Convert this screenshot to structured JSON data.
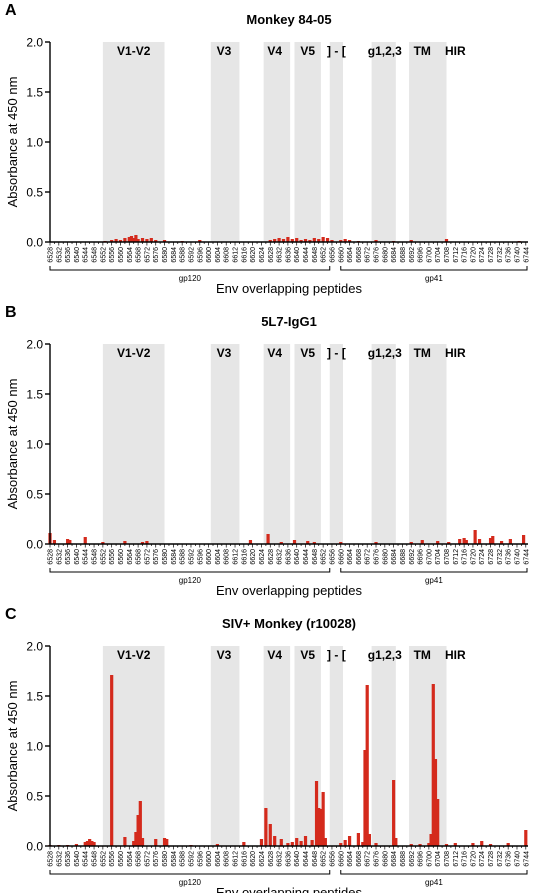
{
  "colors": {
    "bar": "#d42a1c",
    "region": "#e6e6e6",
    "axis": "#000000"
  },
  "chart_data": [
    {
      "panel_letter": "A",
      "type": "bar",
      "title": "Monkey 84-05",
      "ylabel": "Absorbance at 450 nm",
      "xlabel": "Env overlapping peptides",
      "ylim": [
        0,
        2.0
      ],
      "yticks": [
        "0.0",
        "0.5",
        "1.0",
        "1.5",
        "2.0"
      ],
      "x_tick_labels": [
        "6528",
        "6532",
        "6536",
        "6540",
        "6544",
        "6548",
        "6552",
        "6556",
        "6560",
        "6564",
        "6568",
        "6572",
        "6576",
        "6580",
        "6584",
        "6588",
        "6592",
        "6596",
        "6600",
        "6604",
        "6608",
        "6612",
        "6616",
        "6620",
        "6624",
        "6628",
        "6632",
        "6636",
        "6640",
        "6644",
        "6648",
        "6652",
        "6656",
        "6660",
        "6664",
        "6668",
        "6672",
        "6676",
        "6680",
        "6684",
        "6688",
        "6692",
        "6696",
        "6700",
        "6704",
        "6708",
        "6712",
        "6716",
        "6720",
        "6724",
        "6728",
        "6732",
        "6736",
        "6740",
        "6744"
      ],
      "region_labels": [
        "V1-V2",
        "V3",
        "V4",
        "V5",
        "] - [",
        "g1,2,3",
        "TM",
        "HIR"
      ],
      "segment_labels": [
        "gp120",
        "gp41"
      ],
      "values": [
        [
          6553,
          0.01
        ],
        [
          6556,
          0.02
        ],
        [
          6558,
          0.03
        ],
        [
          6560,
          0.02
        ],
        [
          6562,
          0.04
        ],
        [
          6564,
          0.05
        ],
        [
          6565,
          0.06
        ],
        [
          6566,
          0.04
        ],
        [
          6567,
          0.07
        ],
        [
          6568,
          0.03
        ],
        [
          6570,
          0.04
        ],
        [
          6572,
          0.03
        ],
        [
          6574,
          0.04
        ],
        [
          6576,
          0.02
        ],
        [
          6580,
          0.02
        ],
        [
          6588,
          0.01
        ],
        [
          6596,
          0.02
        ],
        [
          6628,
          0.02
        ],
        [
          6630,
          0.03
        ],
        [
          6632,
          0.04
        ],
        [
          6634,
          0.03
        ],
        [
          6636,
          0.05
        ],
        [
          6638,
          0.03
        ],
        [
          6640,
          0.04
        ],
        [
          6642,
          0.02
        ],
        [
          6644,
          0.03
        ],
        [
          6646,
          0.02
        ],
        [
          6648,
          0.04
        ],
        [
          6650,
          0.03
        ],
        [
          6652,
          0.05
        ],
        [
          6654,
          0.04
        ],
        [
          6656,
          0.02
        ],
        [
          6660,
          0.02
        ],
        [
          6662,
          0.03
        ],
        [
          6664,
          0.02
        ],
        [
          6668,
          0.01
        ],
        [
          6676,
          0.02
        ],
        [
          6684,
          0.01
        ],
        [
          6692,
          0.02
        ],
        [
          6708,
          0.03
        ],
        [
          6741,
          0.01
        ]
      ]
    },
    {
      "panel_letter": "B",
      "type": "bar",
      "title": "5L7-IgG1",
      "ylabel": "Absorbance at 450 nm",
      "xlabel": "Env overlapping peptides",
      "ylim": [
        0,
        2.0
      ],
      "yticks": [
        "0.0",
        "0.5",
        "1.0",
        "1.5",
        "2.0"
      ],
      "x_tick_labels": [
        "6528",
        "6532",
        "6536",
        "6540",
        "6544",
        "6548",
        "6552",
        "6556",
        "6560",
        "6564",
        "6568",
        "6572",
        "6576",
        "6580",
        "6584",
        "6588",
        "6592",
        "6596",
        "6600",
        "6604",
        "6608",
        "6612",
        "6616",
        "6620",
        "6624",
        "6628",
        "6632",
        "6636",
        "6640",
        "6644",
        "6648",
        "6652",
        "6656",
        "6660",
        "6664",
        "6668",
        "6672",
        "6676",
        "6680",
        "6684",
        "6688",
        "6692",
        "6696",
        "6700",
        "6704",
        "6708",
        "6712",
        "6716",
        "6720",
        "6724",
        "6728",
        "6732",
        "6736",
        "6740",
        "6744"
      ],
      "region_labels": [
        "V1-V2",
        "V3",
        "V4",
        "V5",
        "] - [",
        "g1,2,3",
        "TM",
        "HIR"
      ],
      "segment_labels": [
        "gp120",
        "gp41"
      ],
      "values": [
        [
          6528,
          0.11
        ],
        [
          6530,
          0.04
        ],
        [
          6536,
          0.05
        ],
        [
          6537,
          0.04
        ],
        [
          6544,
          0.07
        ],
        [
          6552,
          0.02
        ],
        [
          6562,
          0.03
        ],
        [
          6570,
          0.02
        ],
        [
          6572,
          0.03
        ],
        [
          6619,
          0.04
        ],
        [
          6627,
          0.1
        ],
        [
          6633,
          0.02
        ],
        [
          6639,
          0.04
        ],
        [
          6645,
          0.03
        ],
        [
          6648,
          0.02
        ],
        [
          6660,
          0.02
        ],
        [
          6676,
          0.02
        ],
        [
          6692,
          0.02
        ],
        [
          6697,
          0.04
        ],
        [
          6704,
          0.03
        ],
        [
          6709,
          0.02
        ],
        [
          6714,
          0.05
        ],
        [
          6716,
          0.06
        ],
        [
          6717,
          0.04
        ],
        [
          6721,
          0.14
        ],
        [
          6723,
          0.05
        ],
        [
          6728,
          0.06
        ],
        [
          6729,
          0.08
        ],
        [
          6733,
          0.03
        ],
        [
          6737,
          0.05
        ],
        [
          6743,
          0.09
        ]
      ]
    },
    {
      "panel_letter": "C",
      "type": "bar",
      "title": "SIV+ Monkey (r10028)",
      "ylabel": "Absorbance at 450 nm",
      "xlabel": "Env overlapping peptides",
      "ylim": [
        0,
        2.0
      ],
      "yticks": [
        "0.0",
        "0.5",
        "1.0",
        "1.5",
        "2.0"
      ],
      "x_tick_labels": [
        "6528",
        "6532",
        "6536",
        "6540",
        "6544",
        "6548",
        "6552",
        "6556",
        "6560",
        "6564",
        "6568",
        "6572",
        "6576",
        "6580",
        "6584",
        "6588",
        "6592",
        "6596",
        "6600",
        "6604",
        "6608",
        "6612",
        "6616",
        "6620",
        "6624",
        "6628",
        "6632",
        "6636",
        "6640",
        "6644",
        "6648",
        "6652",
        "6656",
        "6660",
        "6664",
        "6668",
        "6672",
        "6676",
        "6680",
        "6684",
        "6688",
        "6692",
        "6696",
        "6700",
        "6704",
        "6708",
        "6712",
        "6716",
        "6720",
        "6724",
        "6728",
        "6732",
        "6736",
        "6740",
        "6744"
      ],
      "region_labels": [
        "V1-V2",
        "V3",
        "V4",
        "V5",
        "] - [",
        "g1,2,3",
        "TM",
        "HIR"
      ],
      "segment_labels": [
        "gp120",
        "gp41"
      ],
      "values": [
        [
          6528,
          0.01
        ],
        [
          6532,
          0.01
        ],
        [
          6536,
          0.01
        ],
        [
          6540,
          0.02
        ],
        [
          6544,
          0.04
        ],
        [
          6545,
          0.05
        ],
        [
          6546,
          0.07
        ],
        [
          6547,
          0.05
        ],
        [
          6548,
          0.04
        ],
        [
          6556,
          1.71
        ],
        [
          6562,
          0.09
        ],
        [
          6566,
          0.05
        ],
        [
          6567,
          0.14
        ],
        [
          6568,
          0.31
        ],
        [
          6569,
          0.45
        ],
        [
          6570,
          0.08
        ],
        [
          6576,
          0.07
        ],
        [
          6580,
          0.08
        ],
        [
          6581,
          0.07
        ],
        [
          6592,
          0.01
        ],
        [
          6604,
          0.02
        ],
        [
          6616,
          0.04
        ],
        [
          6624,
          0.07
        ],
        [
          6626,
          0.38
        ],
        [
          6628,
          0.22
        ],
        [
          6630,
          0.1
        ],
        [
          6633,
          0.07
        ],
        [
          6636,
          0.03
        ],
        [
          6638,
          0.04
        ],
        [
          6640,
          0.08
        ],
        [
          6642,
          0.05
        ],
        [
          6644,
          0.1
        ],
        [
          6647,
          0.06
        ],
        [
          6649,
          0.65
        ],
        [
          6650,
          0.38
        ],
        [
          6651,
          0.37
        ],
        [
          6652,
          0.54
        ],
        [
          6653,
          0.08
        ],
        [
          6660,
          0.03
        ],
        [
          6662,
          0.06
        ],
        [
          6664,
          0.1
        ],
        [
          6668,
          0.13
        ],
        [
          6670,
          0.04
        ],
        [
          6671,
          0.96
        ],
        [
          6672,
          1.61
        ],
        [
          6673,
          0.12
        ],
        [
          6676,
          0.03
        ],
        [
          6684,
          0.66
        ],
        [
          6685,
          0.08
        ],
        [
          6692,
          0.02
        ],
        [
          6696,
          0.02
        ],
        [
          6700,
          0.03
        ],
        [
          6701,
          0.12
        ],
        [
          6702,
          1.62
        ],
        [
          6703,
          0.87
        ],
        [
          6704,
          0.47
        ],
        [
          6708,
          0.02
        ],
        [
          6712,
          0.03
        ],
        [
          6720,
          0.03
        ],
        [
          6724,
          0.05
        ],
        [
          6728,
          0.02
        ],
        [
          6736,
          0.03
        ],
        [
          6744,
          0.16
        ]
      ]
    }
  ]
}
